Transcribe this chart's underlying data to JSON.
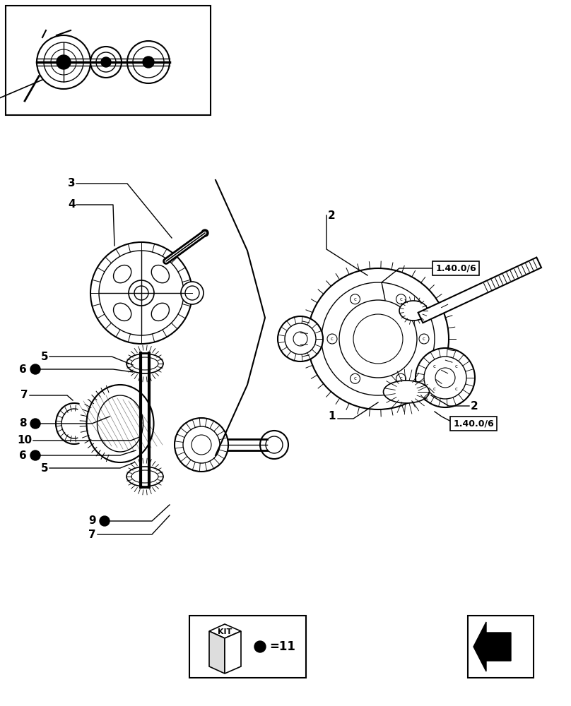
{
  "bg_color": "#ffffff",
  "fig_width": 8.08,
  "fig_height": 10.0,
  "dpi": 100,
  "label_3": "3",
  "label_4": "4",
  "label_5a": "5",
  "label_6a": "6",
  "label_7a": "7",
  "label_8": "8",
  "label_10": "10",
  "label_6b": "6",
  "label_5b": "5",
  "label_9": "9",
  "label_7b": "7",
  "label_1": "1",
  "label_2a": "2",
  "label_2b": "2",
  "label_ref1": "1.40.0/6",
  "label_ref2": "1.40.0/6",
  "kit_text": "KIT",
  "kit_count": "=11"
}
